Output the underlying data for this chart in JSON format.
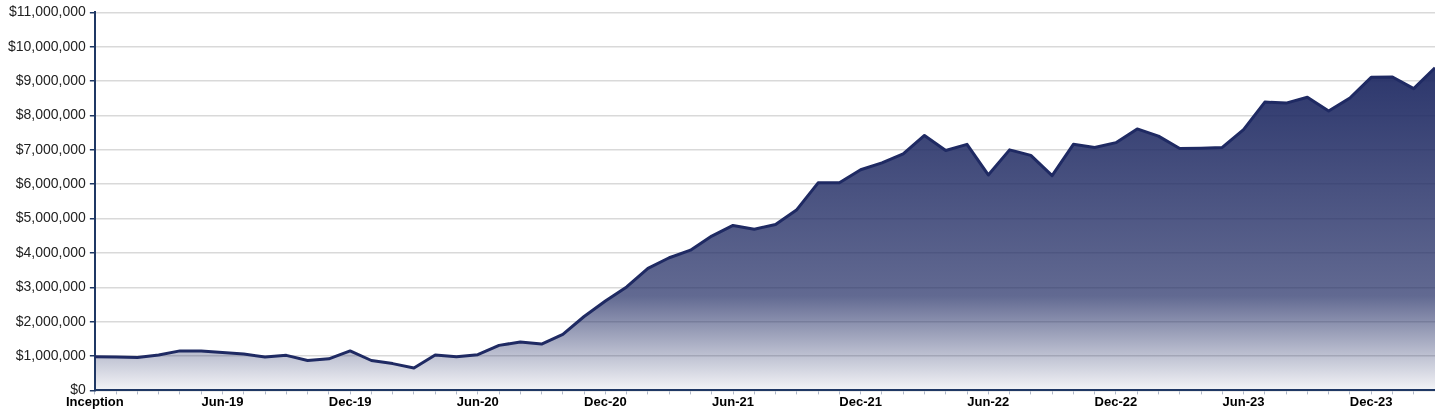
{
  "chart_data": {
    "type": "area",
    "categories": [
      "Inception",
      null,
      null,
      null,
      null,
      null,
      "Jun-19",
      null,
      null,
      null,
      null,
      null,
      "Dec-19",
      null,
      null,
      null,
      null,
      null,
      "Jun-20",
      null,
      null,
      null,
      null,
      null,
      "Dec-20",
      null,
      null,
      null,
      null,
      null,
      "Jun-21",
      null,
      null,
      null,
      null,
      null,
      "Dec-21",
      null,
      null,
      null,
      null,
      null,
      "Jun-22",
      null,
      null,
      null,
      null,
      null,
      "Dec-22",
      null,
      null,
      null,
      null,
      null,
      "Jun-23",
      null,
      null,
      null,
      null,
      null,
      "Dec-23",
      null,
      null,
      null
    ],
    "series": [
      {
        "color": "#1f2a63",
        "values": [
          980000,
          970000,
          960000,
          1030000,
          1150000,
          1150000,
          1100000,
          1060000,
          970000,
          1020000,
          870000,
          920000,
          1150000,
          870000,
          780000,
          650000,
          1030000,
          980000,
          1040000,
          1310000,
          1410000,
          1350000,
          1630000,
          2150000,
          2600000,
          3010000,
          3550000,
          3860000,
          4080000,
          4490000,
          4800000,
          4690000,
          4830000,
          5260000,
          6040000,
          6040000,
          6420000,
          6620000,
          6880000,
          7420000,
          6980000,
          7160000,
          6270000,
          7000000,
          6840000,
          6250000,
          7160000,
          7070000,
          7210000,
          7610000,
          7400000,
          7040000,
          7050000,
          7070000,
          7590000,
          8390000,
          8360000,
          8530000,
          8130000,
          8510000,
          9110000,
          9120000,
          8780000,
          9390000
        ]
      }
    ],
    "ylim": [
      0,
      11000000
    ],
    "yticks": [
      {
        "value": 0,
        "label": "$0"
      },
      {
        "value": 1000000,
        "label": "$1,000,000"
      },
      {
        "value": 2000000,
        "label": "$2,000,000"
      },
      {
        "value": 3000000,
        "label": "$3,000,000"
      },
      {
        "value": 4000000,
        "label": "$4,000,000"
      },
      {
        "value": 5000000,
        "label": "$5,000,000"
      },
      {
        "value": 6000000,
        "label": "$6,000,000"
      },
      {
        "value": 7000000,
        "label": "$7,000,000"
      },
      {
        "value": 8000000,
        "label": "$8,000,000"
      },
      {
        "value": 9000000,
        "label": "$9,000,000"
      },
      {
        "value": 10000000,
        "label": "$10,000,000"
      },
      {
        "value": 11000000,
        "label": "$11,000,000"
      }
    ],
    "grid": "y",
    "legend": false,
    "marker": "none",
    "line_style": "solid"
  }
}
